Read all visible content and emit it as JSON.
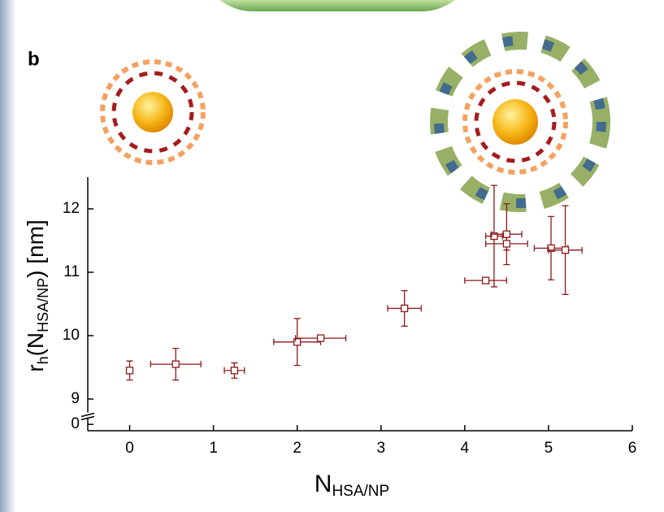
{
  "panel_label": "b",
  "chart_data": {
    "type": "scatter",
    "xlabel": [
      "N",
      "HSA/NP"
    ],
    "ylabel": [
      "r",
      "h",
      "(N",
      "HSA/NP",
      ") [nm]"
    ],
    "xlim": [
      -0.5,
      6
    ],
    "xticks": [
      0,
      1,
      2,
      3,
      4,
      5,
      6
    ],
    "ylim": [
      -0.1,
      12.5
    ],
    "yticks": [
      0,
      9,
      10,
      11,
      12
    ],
    "ybreak": [
      0.15,
      8.75
    ],
    "series": [
      {
        "color": "#8b1a1a",
        "x": [
          0,
          0.55,
          1.25,
          2.0,
          2.28,
          3.28,
          4.25,
          4.35,
          4.5,
          4.5,
          5.03,
          5.2
        ],
        "xerr": [
          0.03,
          0.3,
          0.12,
          0.28,
          0.3,
          0.2,
          0.25,
          0.1,
          0.18,
          0.25,
          0.2,
          0.2
        ],
        "values": [
          9.45,
          9.55,
          9.45,
          9.9,
          9.96,
          10.43,
          10.87,
          11.57,
          11.6,
          11.45,
          11.38,
          11.35
        ],
        "yerr": [
          0.15,
          0.25,
          0.12,
          0.37,
          0.03,
          0.28,
          0.03,
          0.8,
          0.48,
          0.1,
          0.5,
          0.7
        ]
      }
    ]
  }
}
